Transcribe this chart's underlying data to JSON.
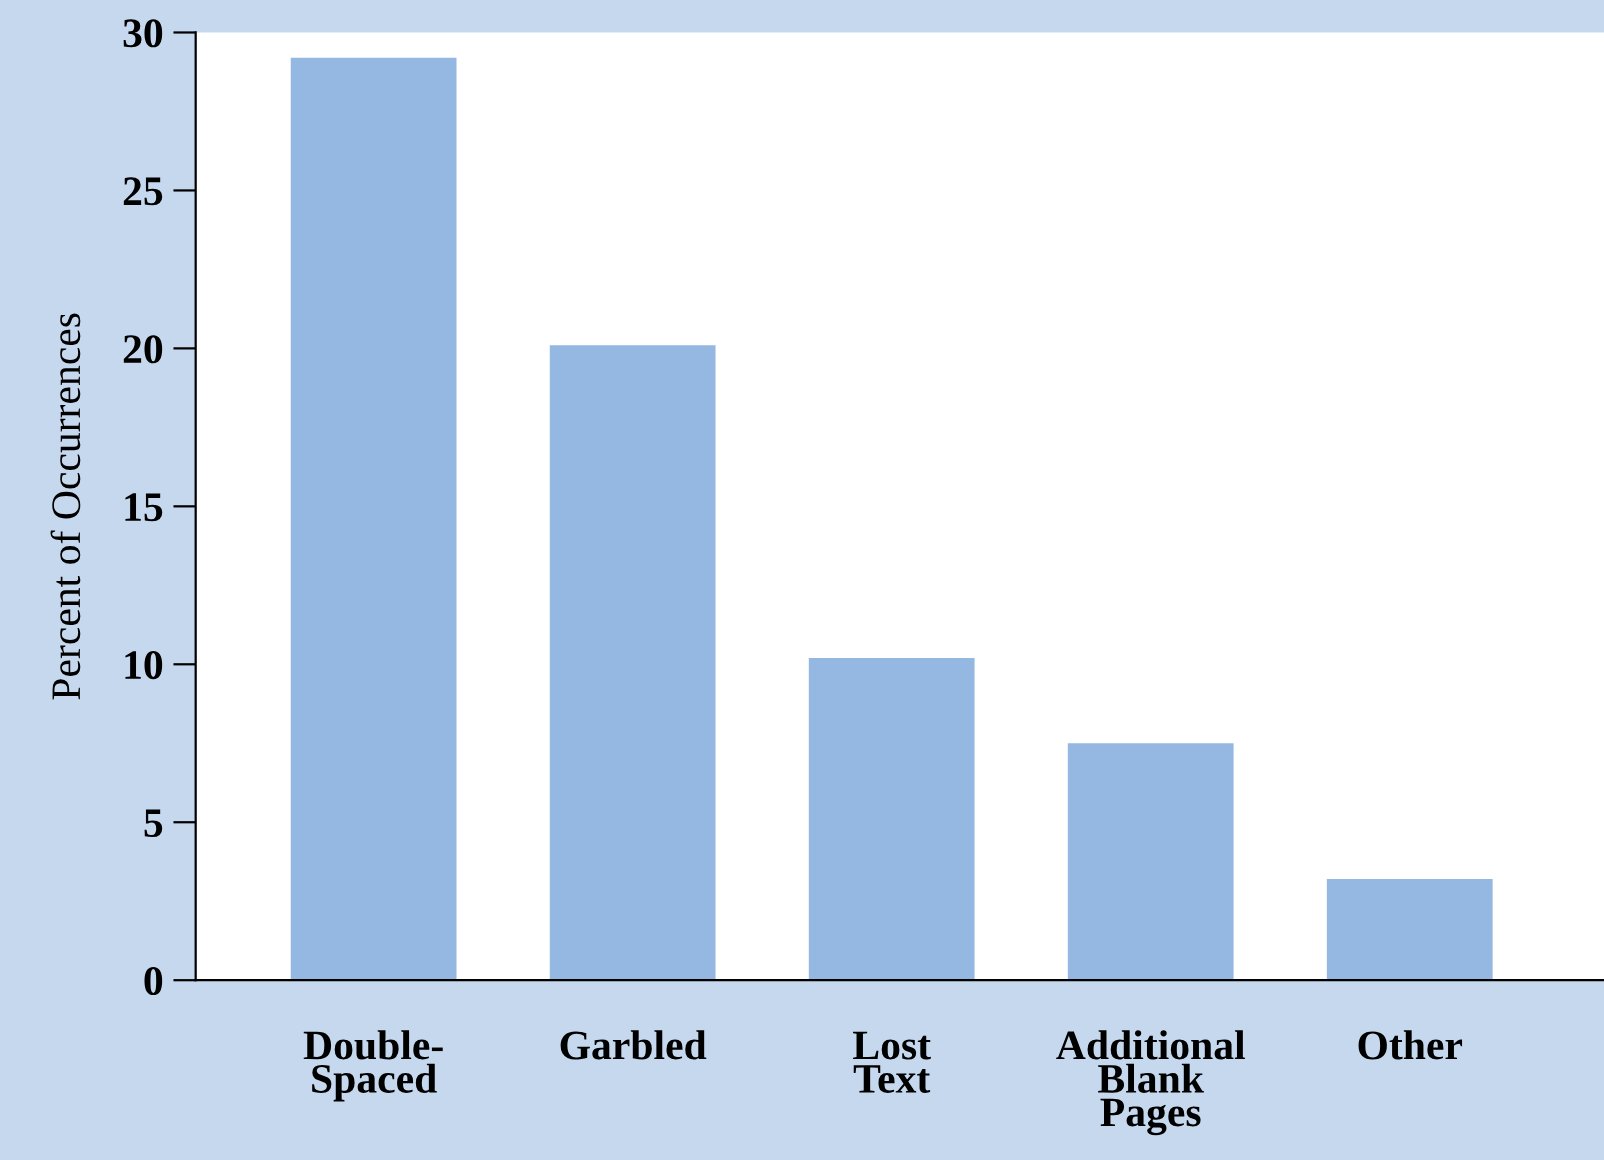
{
  "chart_data": {
    "type": "bar",
    "ylabel": "Percent of Occurrences",
    "categories": [
      "Double-Spaced",
      "Garbled",
      "Lost Text",
      "Additional Blank Pages",
      "Other"
    ],
    "values": [
      29.2,
      20.1,
      10.2,
      7.5,
      3.2
    ],
    "color": "#95b8e2",
    "ylim": [
      0,
      30
    ],
    "yticks": [
      0,
      5,
      10,
      15,
      20,
      25,
      30
    ],
    "grid": false,
    "legend": false
  }
}
